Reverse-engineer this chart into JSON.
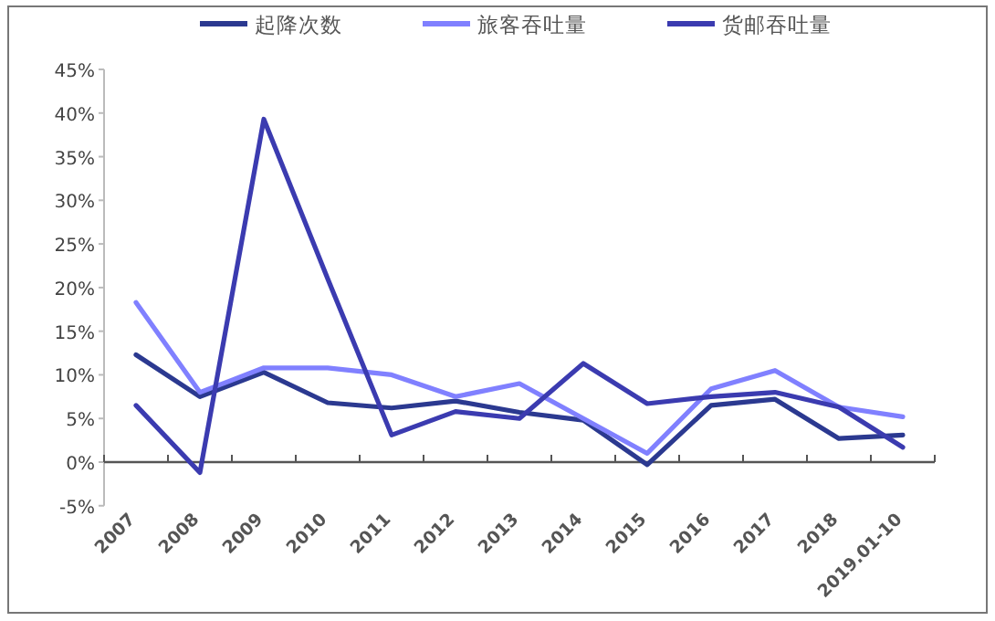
{
  "chart_data": {
    "type": "line",
    "categories": [
      "2007",
      "2008",
      "2009",
      "2010",
      "2011",
      "2012",
      "2013",
      "2014",
      "2015",
      "2016",
      "2017",
      "2018",
      "2019.01-10"
    ],
    "series": [
      {
        "name": "起降次数",
        "color": "#2b3990",
        "values": [
          12.3,
          7.5,
          10.3,
          6.8,
          6.2,
          7.0,
          5.7,
          4.8,
          -0.3,
          6.5,
          7.2,
          2.7,
          3.1
        ]
      },
      {
        "name": "旅客吞吐量",
        "color": "#8080ff",
        "values": [
          18.3,
          8.0,
          10.8,
          10.8,
          10.0,
          7.5,
          9.0,
          5.0,
          1.0,
          8.4,
          10.5,
          6.3,
          5.2
        ]
      },
      {
        "name": "货邮吞吐量",
        "color": "#3b3bb0",
        "values": [
          6.5,
          -1.2,
          39.3,
          21,
          3.1,
          5.8,
          5.0,
          11.3,
          6.7,
          7.5,
          8.0,
          6.3,
          1.7
        ]
      }
    ],
    "ylim": [
      -5,
      45
    ],
    "yticks": [
      {
        "value": -5,
        "label": "-5%"
      },
      {
        "value": 0,
        "label": "0%"
      },
      {
        "value": 5,
        "label": "5%"
      },
      {
        "value": 10,
        "label": "10%"
      },
      {
        "value": 15,
        "label": "15%"
      },
      {
        "value": 20,
        "label": "20%"
      },
      {
        "value": 25,
        "label": "25%"
      },
      {
        "value": 30,
        "label": "30%"
      },
      {
        "value": 35,
        "label": "35%"
      },
      {
        "value": 40,
        "label": "40%"
      },
      {
        "value": 45,
        "label": "45%"
      }
    ],
    "legend": "top",
    "marker": "none",
    "line_style": "solid"
  }
}
